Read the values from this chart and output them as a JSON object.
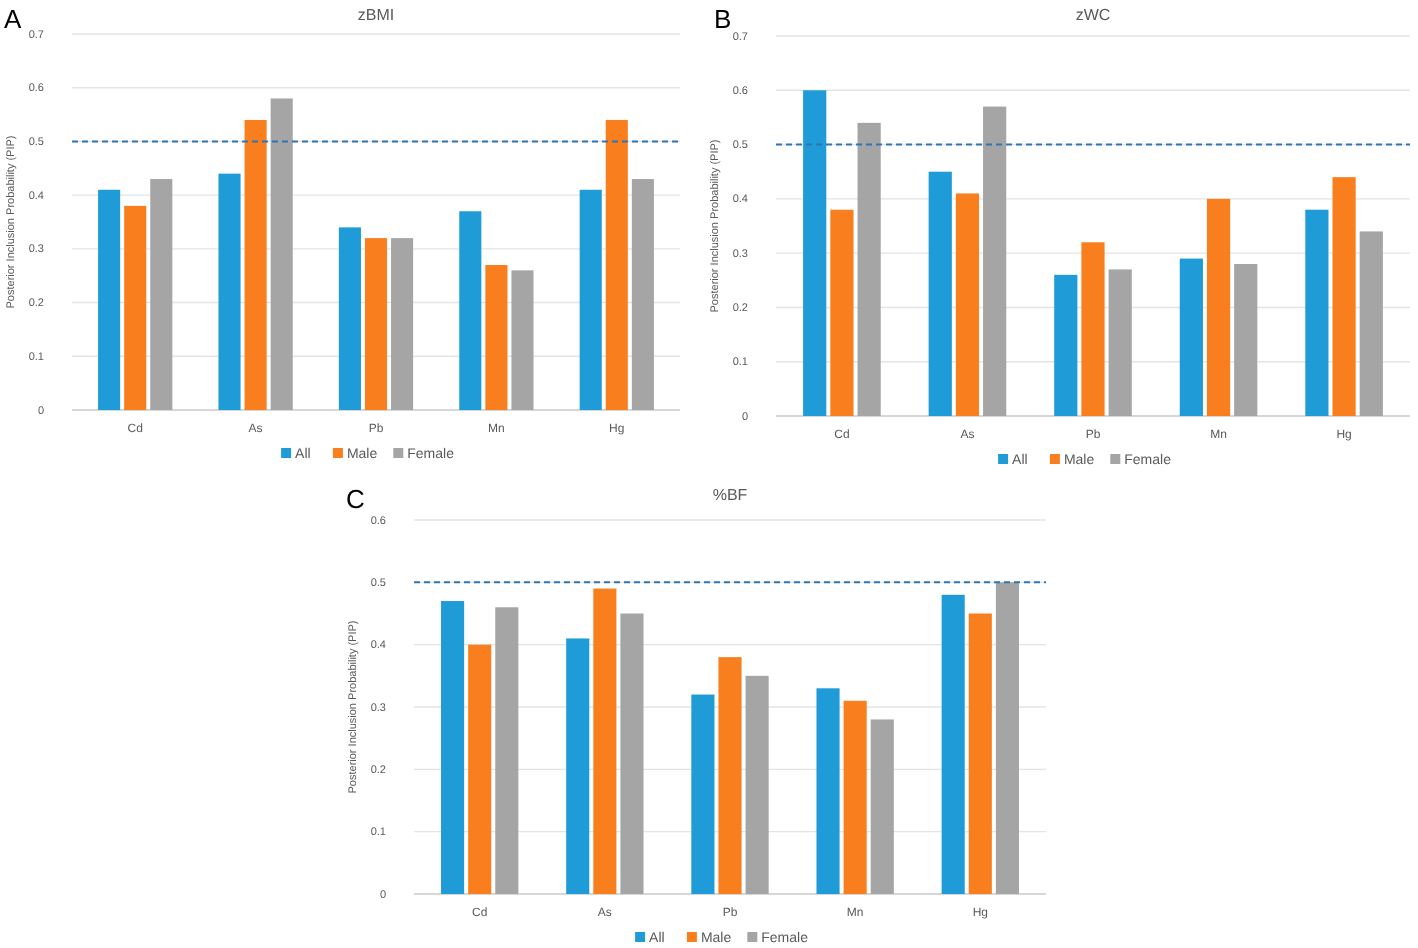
{
  "chart_data": [
    {
      "type": "bar",
      "title": "zBMI",
      "annotations": [
        "A"
      ],
      "ylabel": "Posterior Inclusion Probability (PIP)",
      "categories": [
        "Cd",
        "As",
        "Pb",
        "Mn",
        "Hg"
      ],
      "series": [
        {
          "name": "All",
          "color": "#1f9bd7",
          "values": [
            0.41,
            0.44,
            0.34,
            0.37,
            0.41
          ]
        },
        {
          "name": "Male",
          "color": "#f97f1e",
          "values": [
            0.38,
            0.54,
            0.32,
            0.27,
            0.54
          ]
        },
        {
          "name": "Female",
          "color": "#a5a5a5",
          "values": [
            0.43,
            0.58,
            0.32,
            0.26,
            0.43
          ]
        }
      ],
      "ylim": [
        0,
        0.7
      ],
      "yticks": [
        0,
        0.1,
        0.2,
        0.3,
        0.4,
        0.5,
        0.6,
        0.7
      ],
      "grid": "y",
      "legend": "bottom",
      "ref_lines": [
        {
          "axis": "y",
          "value": 0.5,
          "color": "#2e75b6",
          "line_style": "dashed"
        }
      ]
    },
    {
      "type": "bar",
      "title": "zWC",
      "annotations": [
        "B"
      ],
      "ylabel": "Posterior Inclusion Probability (PIP)",
      "categories": [
        "Cd",
        "As",
        "Pb",
        "Mn",
        "Hg"
      ],
      "series": [
        {
          "name": "All",
          "color": "#1f9bd7",
          "values": [
            0.6,
            0.45,
            0.26,
            0.29,
            0.38
          ]
        },
        {
          "name": "Male",
          "color": "#f97f1e",
          "values": [
            0.38,
            0.41,
            0.32,
            0.4,
            0.44
          ]
        },
        {
          "name": "Female",
          "color": "#a5a5a5",
          "values": [
            0.54,
            0.57,
            0.27,
            0.28,
            0.34
          ]
        }
      ],
      "ylim": [
        0,
        0.7
      ],
      "yticks": [
        0,
        0.1,
        0.2,
        0.3,
        0.4,
        0.5,
        0.6,
        0.7
      ],
      "grid": "y",
      "legend": "bottom",
      "ref_lines": [
        {
          "axis": "y",
          "value": 0.5,
          "color": "#2e75b6",
          "line_style": "dashed"
        }
      ]
    },
    {
      "type": "bar",
      "title": "%BF",
      "annotations": [
        "C"
      ],
      "ylabel": "Posterior Inclusion Probability (PIP)",
      "categories": [
        "Cd",
        "As",
        "Pb",
        "Mn",
        "Hg"
      ],
      "series": [
        {
          "name": "All",
          "color": "#1f9bd7",
          "values": [
            0.47,
            0.41,
            0.32,
            0.33,
            0.48
          ]
        },
        {
          "name": "Male",
          "color": "#f97f1e",
          "values": [
            0.4,
            0.49,
            0.38,
            0.31,
            0.45
          ]
        },
        {
          "name": "Female",
          "color": "#a5a5a5",
          "values": [
            0.46,
            0.45,
            0.35,
            0.28,
            0.5
          ]
        }
      ],
      "ylim": [
        0,
        0.6
      ],
      "yticks": [
        0,
        0.1,
        0.2,
        0.3,
        0.4,
        0.5,
        0.6
      ],
      "grid": "y",
      "legend": "bottom",
      "ref_lines": [
        {
          "axis": "y",
          "value": 0.5,
          "color": "#2e75b6",
          "line_style": "dashed"
        }
      ]
    }
  ]
}
